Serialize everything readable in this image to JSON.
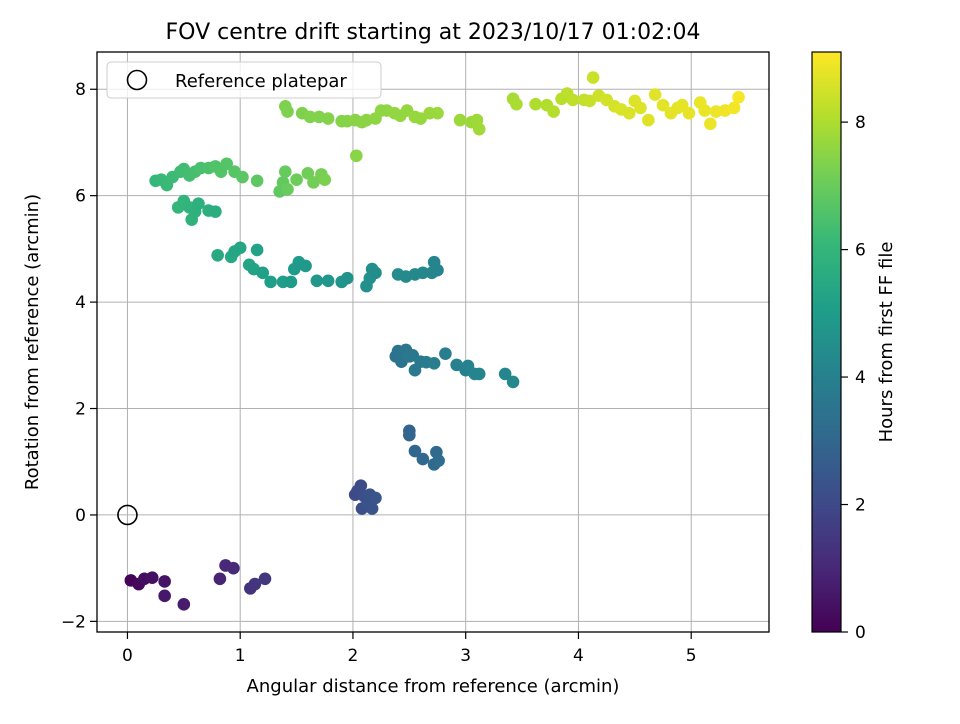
{
  "chart_data": {
    "type": "scatter",
    "title": "FOV centre drift starting at 2023/10/17 01:02:04",
    "xlabel": "Angular distance from reference (arcmin)",
    "ylabel": "Rotation from reference (arcmin)",
    "xlim": [
      -0.27,
      5.69
    ],
    "ylim": [
      -2.2,
      8.7
    ],
    "xticks": [
      0,
      1,
      2,
      3,
      4,
      5
    ],
    "yticks": [
      -2,
      0,
      2,
      4,
      6,
      8
    ],
    "grid": true,
    "legend": {
      "placement": "top-left",
      "entries": [
        "Reference platepar"
      ]
    },
    "reference_point": {
      "x": 0,
      "y": 0,
      "label": "Reference platepar",
      "marker": "open-circle"
    },
    "colorbar": {
      "label": "Hours from first FF file",
      "colormap": "viridis",
      "range": [
        0,
        9.1
      ],
      "ticks": [
        0,
        2,
        4,
        6,
        8
      ]
    },
    "points": [
      {
        "x": 0.03,
        "y": -1.23,
        "h": 0.1
      },
      {
        "x": 0.1,
        "y": -1.3,
        "h": 0.2
      },
      {
        "x": 0.15,
        "y": -1.2,
        "h": 0.3
      },
      {
        "x": 0.22,
        "y": -1.18,
        "h": 0.4
      },
      {
        "x": 0.33,
        "y": -1.25,
        "h": 0.5
      },
      {
        "x": 0.33,
        "y": -1.52,
        "h": 0.6
      },
      {
        "x": 0.5,
        "y": -1.68,
        "h": 0.7
      },
      {
        "x": 0.82,
        "y": -1.2,
        "h": 0.9
      },
      {
        "x": 0.87,
        "y": -0.95,
        "h": 1.0
      },
      {
        "x": 0.94,
        "y": -1.0,
        "h": 1.1
      },
      {
        "x": 1.09,
        "y": -1.38,
        "h": 1.3
      },
      {
        "x": 1.13,
        "y": -1.3,
        "h": 1.4
      },
      {
        "x": 1.22,
        "y": -1.2,
        "h": 1.5
      },
      {
        "x": 2.02,
        "y": 0.38,
        "h": 2.0
      },
      {
        "x": 2.04,
        "y": 0.45,
        "h": 2.05
      },
      {
        "x": 2.07,
        "y": 0.55,
        "h": 2.1
      },
      {
        "x": 2.08,
        "y": 0.12,
        "h": 2.15
      },
      {
        "x": 2.1,
        "y": 0.35,
        "h": 2.2
      },
      {
        "x": 2.13,
        "y": 0.2,
        "h": 2.25
      },
      {
        "x": 2.15,
        "y": 0.38,
        "h": 2.3
      },
      {
        "x": 2.17,
        "y": 0.12,
        "h": 2.35
      },
      {
        "x": 2.2,
        "y": 0.32,
        "h": 2.4
      },
      {
        "x": 2.5,
        "y": 1.58,
        "h": 2.9
      },
      {
        "x": 2.5,
        "y": 1.5,
        "h": 2.95
      },
      {
        "x": 2.55,
        "y": 1.2,
        "h": 3.0
      },
      {
        "x": 2.62,
        "y": 1.05,
        "h": 3.05
      },
      {
        "x": 2.72,
        "y": 0.95,
        "h": 3.1
      },
      {
        "x": 2.74,
        "y": 1.18,
        "h": 3.15
      },
      {
        "x": 2.76,
        "y": 1.02,
        "h": 3.2
      },
      {
        "x": 2.38,
        "y": 2.98,
        "h": 3.4
      },
      {
        "x": 2.4,
        "y": 3.08,
        "h": 3.45
      },
      {
        "x": 2.43,
        "y": 2.88,
        "h": 3.5
      },
      {
        "x": 2.47,
        "y": 3.1,
        "h": 3.55
      },
      {
        "x": 2.5,
        "y": 2.98,
        "h": 3.6
      },
      {
        "x": 2.53,
        "y": 3.0,
        "h": 3.65
      },
      {
        "x": 2.55,
        "y": 2.72,
        "h": 3.7
      },
      {
        "x": 2.6,
        "y": 2.88,
        "h": 3.75
      },
      {
        "x": 2.65,
        "y": 2.87,
        "h": 3.8
      },
      {
        "x": 2.72,
        "y": 2.85,
        "h": 3.85
      },
      {
        "x": 2.82,
        "y": 3.03,
        "h": 3.9
      },
      {
        "x": 2.92,
        "y": 2.82,
        "h": 3.95
      },
      {
        "x": 3.0,
        "y": 2.72,
        "h": 4.0
      },
      {
        "x": 3.02,
        "y": 2.8,
        "h": 4.05
      },
      {
        "x": 3.08,
        "y": 2.65,
        "h": 4.1
      },
      {
        "x": 3.12,
        "y": 2.65,
        "h": 4.15
      },
      {
        "x": 3.35,
        "y": 2.65,
        "h": 4.2
      },
      {
        "x": 3.42,
        "y": 2.5,
        "h": 4.25
      },
      {
        "x": 0.8,
        "y": 4.88,
        "h": 5.5
      },
      {
        "x": 0.92,
        "y": 4.85,
        "h": 5.45
      },
      {
        "x": 0.95,
        "y": 4.95,
        "h": 5.4
      },
      {
        "x": 1.0,
        "y": 5.02,
        "h": 5.35
      },
      {
        "x": 1.08,
        "y": 4.7,
        "h": 5.3
      },
      {
        "x": 1.12,
        "y": 4.62,
        "h": 5.25
      },
      {
        "x": 1.15,
        "y": 4.98,
        "h": 5.2
      },
      {
        "x": 1.2,
        "y": 4.55,
        "h": 5.15
      },
      {
        "x": 1.27,
        "y": 4.38,
        "h": 5.1
      },
      {
        "x": 1.38,
        "y": 4.38,
        "h": 5.05
      },
      {
        "x": 1.45,
        "y": 4.38,
        "h": 5.0
      },
      {
        "x": 1.48,
        "y": 4.62,
        "h": 4.95
      },
      {
        "x": 1.52,
        "y": 4.75,
        "h": 4.9
      },
      {
        "x": 1.58,
        "y": 4.68,
        "h": 4.85
      },
      {
        "x": 1.68,
        "y": 4.4,
        "h": 4.8
      },
      {
        "x": 1.78,
        "y": 4.4,
        "h": 4.75
      },
      {
        "x": 1.9,
        "y": 4.38,
        "h": 4.7
      },
      {
        "x": 1.95,
        "y": 4.45,
        "h": 4.65
      },
      {
        "x": 2.12,
        "y": 4.3,
        "h": 4.6
      },
      {
        "x": 2.15,
        "y": 4.45,
        "h": 4.55
      },
      {
        "x": 2.17,
        "y": 4.62,
        "h": 4.5
      },
      {
        "x": 2.2,
        "y": 4.55,
        "h": 4.45
      },
      {
        "x": 2.4,
        "y": 4.52,
        "h": 4.4
      },
      {
        "x": 2.47,
        "y": 4.48,
        "h": 4.35
      },
      {
        "x": 2.55,
        "y": 4.52,
        "h": 4.3
      },
      {
        "x": 2.62,
        "y": 4.55,
        "h": 4.25
      },
      {
        "x": 2.7,
        "y": 4.55,
        "h": 4.2
      },
      {
        "x": 2.72,
        "y": 4.75,
        "h": 4.15
      },
      {
        "x": 2.75,
        "y": 4.6,
        "h": 4.1
      },
      {
        "x": 0.45,
        "y": 5.78,
        "h": 6.0
      },
      {
        "x": 0.5,
        "y": 5.9,
        "h": 5.95
      },
      {
        "x": 0.55,
        "y": 5.78,
        "h": 5.9
      },
      {
        "x": 0.57,
        "y": 5.55,
        "h": 5.85
      },
      {
        "x": 0.6,
        "y": 5.7,
        "h": 5.8
      },
      {
        "x": 0.63,
        "y": 5.85,
        "h": 5.75
      },
      {
        "x": 0.72,
        "y": 5.72,
        "h": 5.7
      },
      {
        "x": 0.78,
        "y": 5.7,
        "h": 5.65
      },
      {
        "x": 0.25,
        "y": 6.28,
        "h": 6.05
      },
      {
        "x": 0.3,
        "y": 6.3,
        "h": 6.1
      },
      {
        "x": 0.35,
        "y": 6.2,
        "h": 6.15
      },
      {
        "x": 0.4,
        "y": 6.35,
        "h": 6.2
      },
      {
        "x": 0.47,
        "y": 6.45,
        "h": 6.25
      },
      {
        "x": 0.5,
        "y": 6.5,
        "h": 6.3
      },
      {
        "x": 0.55,
        "y": 6.38,
        "h": 6.35
      },
      {
        "x": 0.6,
        "y": 6.45,
        "h": 6.4
      },
      {
        "x": 0.65,
        "y": 6.52,
        "h": 6.45
      },
      {
        "x": 0.72,
        "y": 6.52,
        "h": 6.5
      },
      {
        "x": 0.78,
        "y": 6.55,
        "h": 6.55
      },
      {
        "x": 0.83,
        "y": 6.45,
        "h": 6.6
      },
      {
        "x": 0.88,
        "y": 6.6,
        "h": 6.65
      },
      {
        "x": 0.95,
        "y": 6.45,
        "h": 6.7
      },
      {
        "x": 1.02,
        "y": 6.35,
        "h": 6.75
      },
      {
        "x": 1.15,
        "y": 6.28,
        "h": 6.8
      },
      {
        "x": 1.35,
        "y": 6.08,
        "h": 6.85
      },
      {
        "x": 1.38,
        "y": 6.25,
        "h": 6.9
      },
      {
        "x": 1.4,
        "y": 6.45,
        "h": 6.95
      },
      {
        "x": 1.42,
        "y": 6.12,
        "h": 7.0
      },
      {
        "x": 1.5,
        "y": 6.3,
        "h": 7.05
      },
      {
        "x": 1.6,
        "y": 6.42,
        "h": 7.1
      },
      {
        "x": 1.65,
        "y": 6.25,
        "h": 7.15
      },
      {
        "x": 1.72,
        "y": 6.4,
        "h": 7.2
      },
      {
        "x": 1.75,
        "y": 6.3,
        "h": 7.25
      },
      {
        "x": 1.4,
        "y": 7.68,
        "h": 7.3
      },
      {
        "x": 1.42,
        "y": 7.58,
        "h": 7.32
      },
      {
        "x": 1.55,
        "y": 7.55,
        "h": 7.34
      },
      {
        "x": 1.62,
        "y": 7.48,
        "h": 7.36
      },
      {
        "x": 1.7,
        "y": 7.48,
        "h": 7.38
      },
      {
        "x": 1.78,
        "y": 7.45,
        "h": 7.4
      },
      {
        "x": 1.9,
        "y": 7.4,
        "h": 7.42
      },
      {
        "x": 1.95,
        "y": 7.4,
        "h": 7.44
      },
      {
        "x": 2.02,
        "y": 7.42,
        "h": 7.46
      },
      {
        "x": 2.03,
        "y": 6.75,
        "h": 7.48
      },
      {
        "x": 2.08,
        "y": 7.38,
        "h": 7.5
      },
      {
        "x": 2.12,
        "y": 7.42,
        "h": 7.52
      },
      {
        "x": 2.2,
        "y": 7.45,
        "h": 7.54
      },
      {
        "x": 2.25,
        "y": 7.6,
        "h": 7.56
      },
      {
        "x": 2.3,
        "y": 7.6,
        "h": 7.58
      },
      {
        "x": 2.37,
        "y": 7.55,
        "h": 7.6
      },
      {
        "x": 2.42,
        "y": 7.5,
        "h": 7.62
      },
      {
        "x": 2.48,
        "y": 7.6,
        "h": 7.64
      },
      {
        "x": 2.55,
        "y": 7.48,
        "h": 7.66
      },
      {
        "x": 2.6,
        "y": 7.45,
        "h": 7.68
      },
      {
        "x": 2.68,
        "y": 7.55,
        "h": 7.7
      },
      {
        "x": 2.75,
        "y": 7.55,
        "h": 7.72
      },
      {
        "x": 2.95,
        "y": 7.42,
        "h": 7.74
      },
      {
        "x": 3.05,
        "y": 7.38,
        "h": 7.76
      },
      {
        "x": 3.1,
        "y": 7.42,
        "h": 7.78
      },
      {
        "x": 3.12,
        "y": 7.25,
        "h": 7.8
      },
      {
        "x": 3.42,
        "y": 7.82,
        "h": 7.9
      },
      {
        "x": 3.45,
        "y": 7.72,
        "h": 7.95
      },
      {
        "x": 3.62,
        "y": 7.72,
        "h": 8.0
      },
      {
        "x": 3.72,
        "y": 7.7,
        "h": 8.05
      },
      {
        "x": 3.78,
        "y": 7.58,
        "h": 8.1
      },
      {
        "x": 3.85,
        "y": 7.82,
        "h": 8.15
      },
      {
        "x": 3.9,
        "y": 7.92,
        "h": 8.2
      },
      {
        "x": 3.95,
        "y": 7.8,
        "h": 8.25
      },
      {
        "x": 4.05,
        "y": 7.8,
        "h": 8.3
      },
      {
        "x": 4.1,
        "y": 7.78,
        "h": 8.35
      },
      {
        "x": 4.13,
        "y": 8.22,
        "h": 8.4
      },
      {
        "x": 4.18,
        "y": 7.88,
        "h": 8.45
      },
      {
        "x": 4.25,
        "y": 7.8,
        "h": 8.5
      },
      {
        "x": 4.32,
        "y": 7.68,
        "h": 8.55
      },
      {
        "x": 4.38,
        "y": 7.62,
        "h": 8.6
      },
      {
        "x": 4.45,
        "y": 7.55,
        "h": 8.62
      },
      {
        "x": 4.5,
        "y": 7.78,
        "h": 8.64
      },
      {
        "x": 4.55,
        "y": 7.65,
        "h": 8.66
      },
      {
        "x": 4.62,
        "y": 7.42,
        "h": 8.68
      },
      {
        "x": 4.68,
        "y": 7.9,
        "h": 8.7
      },
      {
        "x": 4.75,
        "y": 7.7,
        "h": 8.72
      },
      {
        "x": 4.82,
        "y": 7.55,
        "h": 8.74
      },
      {
        "x": 4.88,
        "y": 7.65,
        "h": 8.76
      },
      {
        "x": 4.92,
        "y": 7.7,
        "h": 8.78
      },
      {
        "x": 4.98,
        "y": 7.55,
        "h": 8.8
      },
      {
        "x": 5.08,
        "y": 7.75,
        "h": 8.82
      },
      {
        "x": 5.12,
        "y": 7.6,
        "h": 8.84
      },
      {
        "x": 5.17,
        "y": 7.35,
        "h": 8.86
      },
      {
        "x": 5.22,
        "y": 7.58,
        "h": 8.88
      },
      {
        "x": 5.3,
        "y": 7.6,
        "h": 8.9
      },
      {
        "x": 5.38,
        "y": 7.65,
        "h": 8.95
      },
      {
        "x": 5.42,
        "y": 7.85,
        "h": 9.0
      }
    ]
  }
}
